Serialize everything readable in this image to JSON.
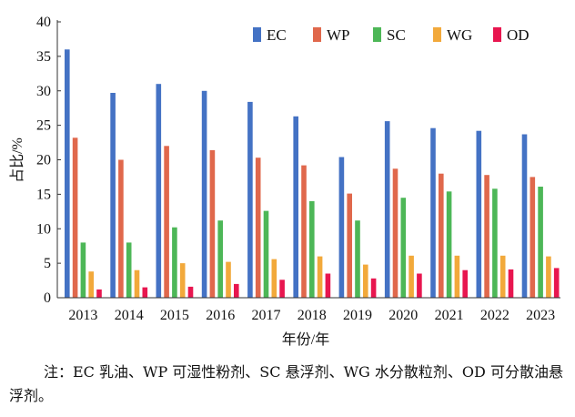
{
  "chart_data": {
    "type": "bar",
    "title": "",
    "xlabel": "年份/年",
    "ylabel": "占比/%",
    "ylim": [
      0,
      40
    ],
    "yticks": [
      0,
      5,
      10,
      15,
      20,
      25,
      30,
      35,
      40
    ],
    "categories": [
      "2013",
      "2014",
      "2015",
      "2016",
      "2017",
      "2018",
      "2019",
      "2020",
      "2021",
      "2022",
      "2023"
    ],
    "legend_position": "top-right",
    "series": [
      {
        "name": "EC",
        "color": "#4472c4",
        "values": [
          36.0,
          29.7,
          31.0,
          30.0,
          28.4,
          26.3,
          20.4,
          25.6,
          24.6,
          24.2,
          23.7
        ]
      },
      {
        "name": "WP",
        "color": "#e0684c",
        "values": [
          23.2,
          20.0,
          22.0,
          21.4,
          20.3,
          19.2,
          15.1,
          18.7,
          18.0,
          17.8,
          17.5
        ]
      },
      {
        "name": "SC",
        "color": "#4db757",
        "values": [
          8.0,
          8.0,
          10.2,
          11.2,
          12.6,
          14.0,
          11.2,
          14.5,
          15.4,
          15.8,
          16.1
        ]
      },
      {
        "name": "WG",
        "color": "#f2a93b",
        "values": [
          3.8,
          4.0,
          5.0,
          5.2,
          5.6,
          6.0,
          4.8,
          6.1,
          6.1,
          6.1,
          6.0
        ]
      },
      {
        "name": "OD",
        "color": "#e8164f",
        "values": [
          1.2,
          1.5,
          1.6,
          2.0,
          2.6,
          3.5,
          2.8,
          3.5,
          4.0,
          4.1,
          4.3
        ]
      }
    ]
  },
  "note": "注：EC 乳油、WP 可湿性粉剂、SC 悬浮剂、WG 水分散粒剂、OD 可分散油悬浮剂。"
}
